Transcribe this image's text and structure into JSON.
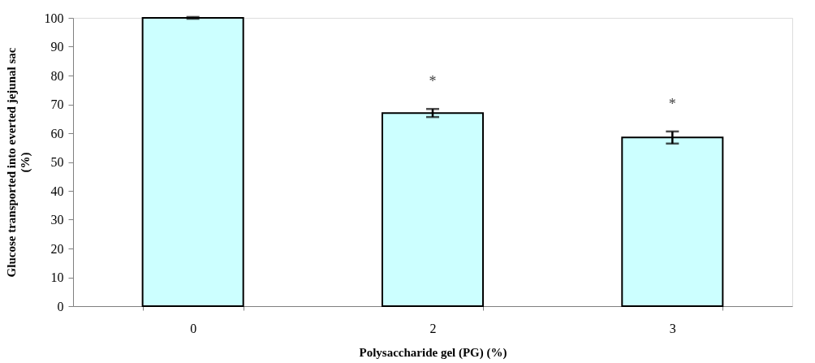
{
  "chart_data": {
    "type": "bar",
    "xlabel": "Polysaccharide gel (PG) (%)",
    "ylabel": "Glucose transported into everted jejunal sac (%)",
    "categories": [
      "0",
      "2",
      "3"
    ],
    "values": [
      100,
      67,
      58.5
    ],
    "errors": [
      0.3,
      1.4,
      2.1
    ],
    "color": "#ccffff",
    "ylim": [
      0,
      100
    ],
    "yticks": [
      0,
      10,
      20,
      30,
      40,
      50,
      60,
      70,
      80,
      90,
      100
    ],
    "value_labels": [
      null,
      "*",
      "*"
    ],
    "grid": false
  }
}
